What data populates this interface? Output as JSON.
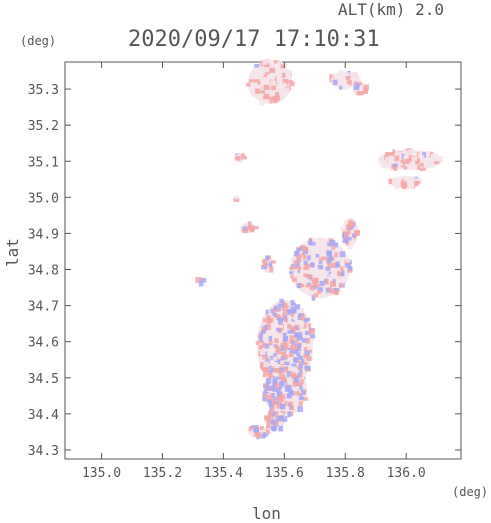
{
  "header": {
    "altitude_label": "ALT(km) 2.0",
    "timestamp": "2020/09/17 17:10:31"
  },
  "axes": {
    "y_unit": "(deg)",
    "x_unit": "(deg)",
    "xlabel": "lon",
    "ylabel": "lat",
    "x_range": [
      134.88,
      136.18
    ],
    "y_range": [
      34.275,
      35.375
    ],
    "x_ticks": [
      "135.0",
      "135.2",
      "135.4",
      "135.6",
      "135.8",
      "136.0"
    ],
    "y_ticks": [
      "34.3",
      "34.4",
      "34.5",
      "34.6",
      "34.7",
      "34.8",
      "34.9",
      "35.0",
      "35.1",
      "35.2",
      "35.3"
    ]
  },
  "colors": {
    "frame": "#555555",
    "positive": "#f4a7a7",
    "negative": "#a7a7f4",
    "neutral": "#f6e6ec"
  },
  "echo_regions": [
    {
      "name": "north-cluster",
      "lon": 135.52,
      "lat": 35.32,
      "kind": "positive"
    },
    {
      "name": "northeast-small",
      "lon": 135.74,
      "lat": 35.3,
      "kind": "positive"
    },
    {
      "name": "east-cluster",
      "lon": 136.0,
      "lat": 35.1,
      "kind": "positive"
    },
    {
      "name": "central-band",
      "lon": 135.66,
      "lat": 34.84,
      "kind": "mixed"
    },
    {
      "name": "south-cluster",
      "lon": 135.55,
      "lat": 34.56,
      "kind": "mixed"
    },
    {
      "name": "southern-tail",
      "lon": 135.48,
      "lat": 34.35,
      "kind": "mixed"
    }
  ]
}
